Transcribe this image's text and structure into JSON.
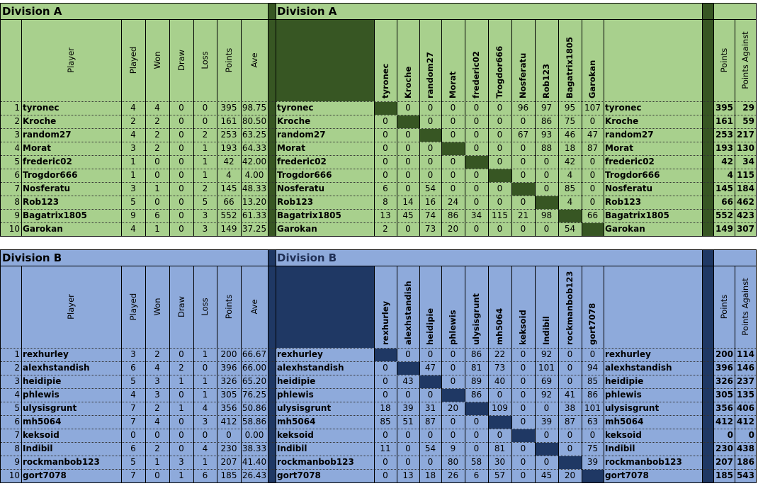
{
  "divisions": [
    {
      "id": "secA",
      "title": "Division A",
      "colors": {
        "bg": "#a8d08d",
        "dark": "#375623"
      },
      "headers": {
        "player": "Player",
        "played": "Played",
        "won": "Won",
        "draw": "Draw",
        "loss": "Loss",
        "points": "Points",
        "ave": "Ave",
        "points_against": "Points Against"
      },
      "opponents": [
        "tyronec",
        "Kroche",
        "random27",
        "Morat",
        "frederic02",
        "Trogdor666",
        "Nosferatu",
        "Rob123",
        "Bagatrix1805",
        "Garokan"
      ],
      "rows": [
        {
          "idx": "1",
          "player": "tyronec",
          "played": "4",
          "won": "4",
          "draw": "0",
          "loss": "0",
          "points": "395",
          "ave": "98.75",
          "matrix": [
            "",
            "0",
            "0",
            "0",
            "0",
            "0",
            "96",
            "97",
            "95",
            "107"
          ],
          "pa": "29"
        },
        {
          "idx": "2",
          "player": "Kroche",
          "played": "2",
          "won": "2",
          "draw": "0",
          "loss": "0",
          "points": "161",
          "ave": "80.50",
          "matrix": [
            "0",
            "",
            "0",
            "0",
            "0",
            "0",
            "0",
            "86",
            "75",
            "0"
          ],
          "pa": "59"
        },
        {
          "idx": "3",
          "player": "random27",
          "played": "4",
          "won": "2",
          "draw": "0",
          "loss": "2",
          "points": "253",
          "ave": "63.25",
          "matrix": [
            "0",
            "0",
            "",
            "0",
            "0",
            "0",
            "67",
            "93",
            "46",
            "47"
          ],
          "pa": "217"
        },
        {
          "idx": "4",
          "player": "Morat",
          "played": "3",
          "won": "2",
          "draw": "0",
          "loss": "1",
          "points": "193",
          "ave": "64.33",
          "matrix": [
            "0",
            "0",
            "0",
            "",
            "0",
            "0",
            "0",
            "88",
            "18",
            "87"
          ],
          "pa": "130"
        },
        {
          "idx": "5",
          "player": "frederic02",
          "played": "1",
          "won": "0",
          "draw": "0",
          "loss": "1",
          "points": "42",
          "ave": "42.00",
          "matrix": [
            "0",
            "0",
            "0",
            "0",
            "",
            "0",
            "0",
            "0",
            "42",
            "0"
          ],
          "pa": "34"
        },
        {
          "idx": "6",
          "player": "Trogdor666",
          "played": "1",
          "won": "0",
          "draw": "0",
          "loss": "1",
          "points": "4",
          "ave": "4.00",
          "matrix": [
            "0",
            "0",
            "0",
            "0",
            "0",
            "",
            "0",
            "0",
            "4",
            "0"
          ],
          "pa": "115"
        },
        {
          "idx": "7",
          "player": "Nosferatu",
          "played": "3",
          "won": "1",
          "draw": "0",
          "loss": "2",
          "points": "145",
          "ave": "48.33",
          "matrix": [
            "6",
            "0",
            "54",
            "0",
            "0",
            "0",
            "",
            "0",
            "85",
            "0"
          ],
          "pa": "184"
        },
        {
          "idx": "8",
          "player": "Rob123",
          "played": "5",
          "won": "0",
          "draw": "0",
          "loss": "5",
          "points": "66",
          "ave": "13.20",
          "matrix": [
            "8",
            "14",
            "16",
            "24",
            "0",
            "0",
            "0",
            "",
            "4",
            "0"
          ],
          "pa": "462"
        },
        {
          "idx": "9",
          "player": "Bagatrix1805",
          "played": "9",
          "won": "6",
          "draw": "0",
          "loss": "3",
          "points": "552",
          "ave": "61.33",
          "matrix": [
            "13",
            "45",
            "74",
            "86",
            "34",
            "115",
            "21",
            "98",
            "",
            "66"
          ],
          "pa": "423"
        },
        {
          "idx": "10",
          "player": "Garokan",
          "played": "4",
          "won": "1",
          "draw": "0",
          "loss": "3",
          "points": "149",
          "ave": "37.25",
          "matrix": [
            "2",
            "0",
            "73",
            "20",
            "0",
            "0",
            "0",
            "0",
            "54",
            ""
          ],
          "pa": "307"
        }
      ]
    },
    {
      "id": "secB",
      "title": "Division B",
      "colors": {
        "bg": "#8eaadb",
        "dark": "#1f3864"
      },
      "headers": {
        "player": "Player",
        "played": "Played",
        "won": "Won",
        "draw": "Draw",
        "loss": "Loss",
        "points": "Points",
        "ave": "Ave",
        "points_against": "Points Against"
      },
      "opponents": [
        "rexhurley",
        "alexhstandish",
        "heidipie",
        "phlewis",
        "ulysisgrunt",
        "mh5064",
        "keksoid",
        "Indibil",
        "rockmanbob123",
        "gort7078"
      ],
      "rows": [
        {
          "idx": "1",
          "player": "rexhurley",
          "played": "3",
          "won": "2",
          "draw": "0",
          "loss": "1",
          "points": "200",
          "ave": "66.67",
          "matrix": [
            "",
            "0",
            "0",
            "0",
            "86",
            "22",
            "0",
            "92",
            "0",
            "0"
          ],
          "pa": "114"
        },
        {
          "idx": "2",
          "player": "alexhstandish",
          "played": "6",
          "won": "4",
          "draw": "2",
          "loss": "0",
          "points": "396",
          "ave": "66.00",
          "matrix": [
            "0",
            "",
            "47",
            "0",
            "81",
            "73",
            "0",
            "101",
            "0",
            "94"
          ],
          "pa": "146"
        },
        {
          "idx": "3",
          "player": "heidipie",
          "played": "5",
          "won": "3",
          "draw": "1",
          "loss": "1",
          "points": "326",
          "ave": "65.20",
          "matrix": [
            "0",
            "43",
            "",
            "0",
            "89",
            "40",
            "0",
            "69",
            "0",
            "85"
          ],
          "pa": "237"
        },
        {
          "idx": "4",
          "player": "phlewis",
          "played": "4",
          "won": "3",
          "draw": "0",
          "loss": "1",
          "points": "305",
          "ave": "76.25",
          "matrix": [
            "0",
            "0",
            "0",
            "",
            "86",
            "0",
            "0",
            "92",
            "41",
            "86"
          ],
          "pa": "135"
        },
        {
          "idx": "5",
          "player": "ulysisgrunt",
          "played": "7",
          "won": "2",
          "draw": "1",
          "loss": "4",
          "points": "356",
          "ave": "50.86",
          "matrix": [
            "18",
            "39",
            "31",
            "20",
            "",
            "109",
            "0",
            "0",
            "38",
            "101"
          ],
          "pa": "406"
        },
        {
          "idx": "6",
          "player": "mh5064",
          "played": "7",
          "won": "4",
          "draw": "0",
          "loss": "3",
          "points": "412",
          "ave": "58.86",
          "matrix": [
            "85",
            "51",
            "87",
            "0",
            "0",
            "",
            "0",
            "39",
            "87",
            "63"
          ],
          "pa": "412"
        },
        {
          "idx": "7",
          "player": "keksoid",
          "played": "0",
          "won": "0",
          "draw": "0",
          "loss": "0",
          "points": "0",
          "ave": "0.00",
          "matrix": [
            "0",
            "0",
            "0",
            "0",
            "0",
            "0",
            "",
            "0",
            "0",
            "0"
          ],
          "pa": "0"
        },
        {
          "idx": "8",
          "player": "Indibil",
          "played": "6",
          "won": "2",
          "draw": "0",
          "loss": "4",
          "points": "230",
          "ave": "38.33",
          "matrix": [
            "11",
            "0",
            "54",
            "9",
            "0",
            "81",
            "0",
            "",
            "0",
            "75"
          ],
          "pa": "438"
        },
        {
          "idx": "9",
          "player": "rockmanbob123",
          "played": "5",
          "won": "1",
          "draw": "3",
          "loss": "1",
          "points": "207",
          "ave": "41.40",
          "matrix": [
            "0",
            "0",
            "0",
            "80",
            "58",
            "30",
            "0",
            "0",
            "",
            "39"
          ],
          "pa": "186"
        },
        {
          "idx": "10",
          "player": "gort7078",
          "played": "7",
          "won": "0",
          "draw": "1",
          "loss": "6",
          "points": "185",
          "ave": "26.43",
          "matrix": [
            "0",
            "13",
            "18",
            "26",
            "6",
            "57",
            "0",
            "45",
            "20",
            ""
          ],
          "pa": "543"
        }
      ]
    }
  ]
}
